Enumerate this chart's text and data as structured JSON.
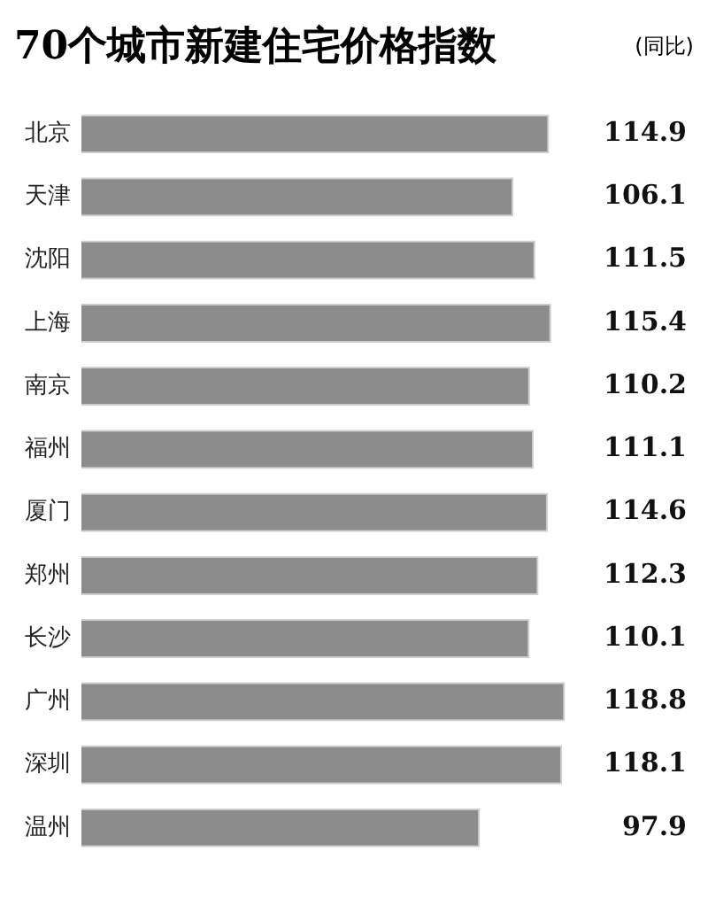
{
  "chart_data": {
    "type": "bar",
    "orientation": "horizontal",
    "title": "70个城市新建住宅价格指数",
    "annotations": [
      "(同比)"
    ],
    "categories": [
      "北京",
      "天津",
      "沈阳",
      "上海",
      "南京",
      "福州",
      "厦门",
      "郑州",
      "长沙",
      "广州",
      "深圳",
      "温州"
    ],
    "values": [
      114.9,
      106.1,
      111.5,
      115.4,
      110.2,
      111.1,
      114.6,
      112.3,
      110.1,
      118.8,
      118.1,
      97.9
    ],
    "color": "#8c8c8c",
    "tick_labels": "y",
    "grid": false,
    "legend": false,
    "data_labels": true
  }
}
